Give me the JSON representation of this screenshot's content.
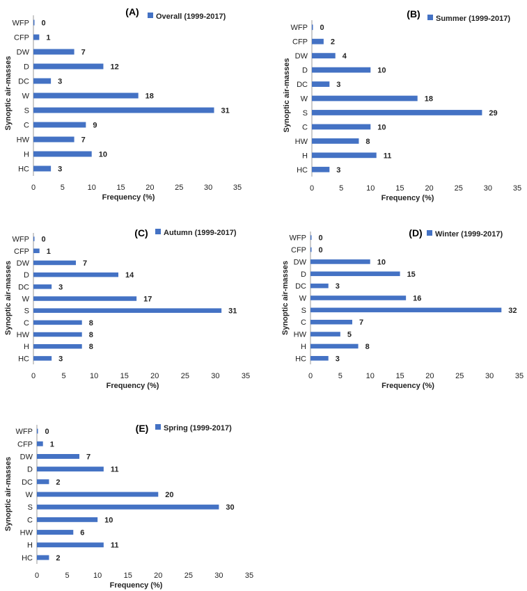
{
  "bar_color": "#4472C4",
  "chart_data": [
    {
      "type": "bar",
      "orientation": "horizontal",
      "panel_label": "(A)",
      "legend": "Overall (1999-2017)",
      "legend_position": "top-right",
      "categories": [
        "WFP",
        "CFP",
        "DW",
        "D",
        "DC",
        "W",
        "S",
        "C",
        "HW",
        "H",
        "HC"
      ],
      "values": [
        0,
        1,
        7,
        12,
        3,
        18,
        31,
        9,
        7,
        10,
        3
      ],
      "value_labels": [
        "0",
        "1",
        "7",
        "12",
        "3",
        "18",
        "31",
        "9",
        "7",
        "10",
        "3"
      ],
      "xlim": [
        0,
        35
      ],
      "x_ticks": [
        "0",
        "5",
        "10",
        "15",
        "20",
        "25",
        "30",
        "35"
      ],
      "xlabel": "Frequency (%)",
      "ylabel": "Synoptic air-masses",
      "grid": false
    },
    {
      "type": "bar",
      "orientation": "horizontal",
      "panel_label": "(B)",
      "legend": "Summer (1999-2017)",
      "legend_position": "top-right",
      "categories": [
        "WFP",
        "CFP",
        "DW",
        "D",
        "DC",
        "W",
        "S",
        "C",
        "HW",
        "H",
        "HC"
      ],
      "values": [
        0,
        2,
        4,
        10,
        3,
        18,
        29,
        10,
        8,
        11,
        3
      ],
      "value_labels": [
        "0",
        "2",
        "4",
        "10",
        "3",
        "18",
        "29",
        "10",
        "8",
        "11",
        "3"
      ],
      "xlim": [
        0,
        35
      ],
      "x_ticks": [
        "0",
        "5",
        "10",
        "15",
        "20",
        "25",
        "30",
        "35"
      ],
      "xlabel": "Frequency (%)",
      "ylabel": "Synoptic air-masses",
      "grid": false
    },
    {
      "type": "bar",
      "orientation": "horizontal",
      "panel_label": "(C)",
      "legend": "Autumn (1999-2017)",
      "legend_position": "top-right",
      "categories": [
        "WFP",
        "CFP",
        "DW",
        "D",
        "DC",
        "W",
        "S",
        "C",
        "HW",
        "H",
        "HC"
      ],
      "values": [
        0,
        1,
        7,
        14,
        3,
        17,
        31,
        8,
        8,
        8,
        3
      ],
      "value_labels": [
        "0",
        "1",
        "7",
        "14",
        "3",
        "17",
        "31",
        "8",
        "8",
        "8",
        "3"
      ],
      "xlim": [
        0,
        35
      ],
      "x_ticks": [
        "0",
        "5",
        "10",
        "15",
        "20",
        "25",
        "30",
        "35"
      ],
      "xlabel": "Frequency (%)",
      "ylabel": "Synoptic air-masses",
      "grid": false
    },
    {
      "type": "bar",
      "orientation": "horizontal",
      "panel_label": "(D)",
      "legend": "Winter (1999-2017)",
      "legend_position": "top-right",
      "categories": [
        "WFP",
        "CFP",
        "DW",
        "D",
        "DC",
        "W",
        "S",
        "C",
        "HW",
        "H",
        "HC"
      ],
      "values": [
        0,
        0,
        10,
        15,
        3,
        16,
        32,
        7,
        5,
        8,
        3
      ],
      "value_labels": [
        "0",
        "0",
        "10",
        "15",
        "3",
        "16",
        "32",
        "7",
        "5",
        "8",
        "3"
      ],
      "xlim": [
        0,
        35
      ],
      "x_ticks": [
        "0",
        "5",
        "10",
        "15",
        "20",
        "25",
        "30",
        "35"
      ],
      "xlabel": "Frequency (%)",
      "ylabel": "Synoptic air-masses",
      "grid": false
    },
    {
      "type": "bar",
      "orientation": "horizontal",
      "panel_label": "(E)",
      "legend": "Spring (1999-2017)",
      "legend_position": "top-right",
      "categories": [
        "WFP",
        "CFP",
        "DW",
        "D",
        "DC",
        "W",
        "S",
        "C",
        "HW",
        "H",
        "HC"
      ],
      "values": [
        0,
        1,
        7,
        11,
        2,
        20,
        30,
        10,
        6,
        11,
        2
      ],
      "value_labels": [
        "0",
        "1",
        "7",
        "11",
        "2",
        "20",
        "30",
        "10",
        "6",
        "11",
        "2"
      ],
      "xlim": [
        0,
        35
      ],
      "x_ticks": [
        "0",
        "5",
        "10",
        "15",
        "20",
        "25",
        "30",
        "35"
      ],
      "xlabel": "Frequency (%)",
      "ylabel": "Synoptic air-masses",
      "grid": false
    }
  ]
}
